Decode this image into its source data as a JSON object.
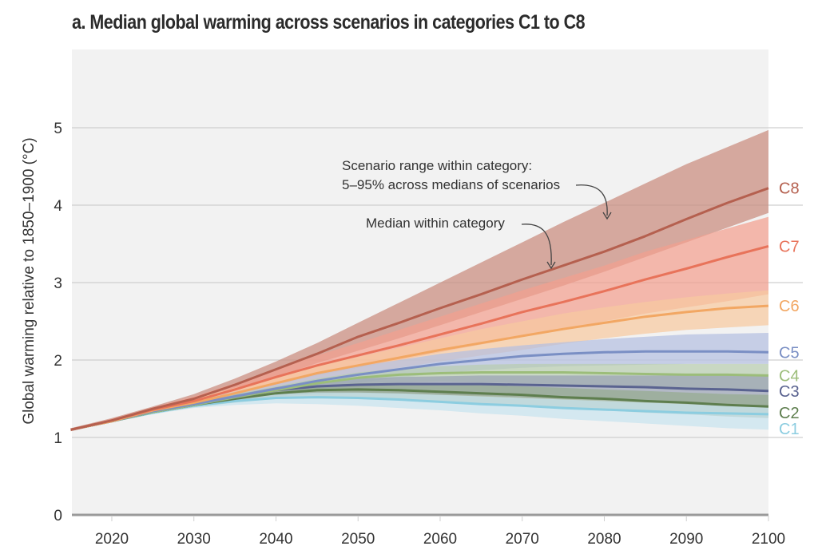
{
  "chart_data": {
    "type": "area",
    "title": "a. Median global warming across scenarios in categories C1 to C8",
    "xlabel": "",
    "ylabel": "Global warming relative to 1850–1900 (°C)",
    "xlim": [
      2015,
      2100
    ],
    "ylim": [
      0,
      6
    ],
    "x_ticks": [
      2020,
      2030,
      2040,
      2050,
      2060,
      2070,
      2080,
      2090,
      2100
    ],
    "y_ticks": [
      0,
      1,
      2,
      3,
      4,
      5
    ],
    "grid": "horizontal",
    "x": [
      2015,
      2020,
      2025,
      2030,
      2035,
      2040,
      2045,
      2050,
      2055,
      2060,
      2065,
      2070,
      2075,
      2080,
      2085,
      2090,
      2095,
      2100
    ],
    "annotations": [
      {
        "text_line1": "Scenario range within category:",
        "text_line2": "5–95% across medians of scenarios",
        "points_to": "C8 range band"
      },
      {
        "text": "Median within category",
        "points_to": "C8 median line"
      }
    ],
    "series": [
      {
        "name": "C8",
        "color": "#b5604f",
        "band_color": "#c98b7d",
        "median": [
          1.1,
          1.22,
          1.37,
          1.5,
          1.68,
          1.88,
          2.08,
          2.3,
          2.48,
          2.67,
          2.85,
          3.04,
          3.22,
          3.4,
          3.6,
          3.82,
          4.03,
          4.22
        ],
        "upper": [
          1.12,
          1.25,
          1.4,
          1.56,
          1.76,
          1.98,
          2.22,
          2.48,
          2.74,
          3.0,
          3.26,
          3.52,
          3.78,
          4.03,
          4.28,
          4.53,
          4.75,
          4.97
        ],
        "lower": [
          1.08,
          1.2,
          1.35,
          1.46,
          1.61,
          1.78,
          1.96,
          2.12,
          2.28,
          2.45,
          2.62,
          2.79,
          2.96,
          3.14,
          3.33,
          3.52,
          3.71,
          3.9
        ]
      },
      {
        "name": "C7",
        "color": "#e8735a",
        "band_color": "#f3a08f",
        "median": [
          1.1,
          1.22,
          1.36,
          1.47,
          1.62,
          1.78,
          1.93,
          2.06,
          2.19,
          2.33,
          2.47,
          2.62,
          2.75,
          2.89,
          3.04,
          3.18,
          3.33,
          3.47
        ],
        "upper": [
          1.11,
          1.24,
          1.39,
          1.53,
          1.7,
          1.88,
          2.06,
          2.22,
          2.39,
          2.56,
          2.73,
          2.9,
          3.06,
          3.22,
          3.4,
          3.55,
          3.7,
          3.85
        ],
        "lower": [
          1.09,
          1.2,
          1.34,
          1.43,
          1.55,
          1.68,
          1.8,
          1.9,
          2.0,
          2.1,
          2.2,
          2.3,
          2.4,
          2.5,
          2.6,
          2.68,
          2.76,
          2.85
        ]
      },
      {
        "name": "C6",
        "color": "#f2a763",
        "band_color": "#f7c9a0",
        "median": [
          1.1,
          1.21,
          1.35,
          1.45,
          1.57,
          1.7,
          1.83,
          1.93,
          2.03,
          2.13,
          2.22,
          2.31,
          2.4,
          2.48,
          2.56,
          2.62,
          2.67,
          2.7
        ],
        "upper": [
          1.11,
          1.23,
          1.38,
          1.5,
          1.64,
          1.78,
          1.93,
          2.04,
          2.16,
          2.28,
          2.4,
          2.5,
          2.6,
          2.68,
          2.75,
          2.81,
          2.86,
          2.9
        ],
        "lower": [
          1.09,
          1.2,
          1.33,
          1.42,
          1.52,
          1.62,
          1.73,
          1.82,
          1.9,
          1.98,
          2.06,
          2.13,
          2.21,
          2.28,
          2.34,
          2.39,
          2.42,
          2.45
        ]
      },
      {
        "name": "C5",
        "color": "#7a8fc4",
        "band_color": "#b4bfe0",
        "median": [
          1.1,
          1.21,
          1.34,
          1.43,
          1.53,
          1.63,
          1.73,
          1.81,
          1.88,
          1.95,
          2.0,
          2.05,
          2.08,
          2.1,
          2.11,
          2.11,
          2.11,
          2.1
        ],
        "upper": [
          1.11,
          1.23,
          1.37,
          1.47,
          1.59,
          1.71,
          1.82,
          1.92,
          2.0,
          2.08,
          2.14,
          2.19,
          2.23,
          2.27,
          2.3,
          2.33,
          2.34,
          2.35
        ],
        "lower": [
          1.09,
          1.2,
          1.32,
          1.4,
          1.48,
          1.56,
          1.64,
          1.71,
          1.77,
          1.83,
          1.87,
          1.9,
          1.92,
          1.93,
          1.94,
          1.95,
          1.95,
          1.95
        ]
      },
      {
        "name": "C4",
        "color": "#9cbd7a",
        "band_color": "#b8cdb0",
        "median": [
          1.1,
          1.21,
          1.33,
          1.42,
          1.52,
          1.61,
          1.7,
          1.77,
          1.81,
          1.83,
          1.84,
          1.84,
          1.84,
          1.83,
          1.82,
          1.81,
          1.81,
          1.8
        ],
        "upper": [
          1.11,
          1.22,
          1.35,
          1.45,
          1.56,
          1.66,
          1.76,
          1.84,
          1.89,
          1.92,
          1.94,
          1.95,
          1.95,
          1.95,
          1.95,
          1.95,
          1.95,
          1.95
        ],
        "lower": [
          1.09,
          1.2,
          1.31,
          1.4,
          1.48,
          1.55,
          1.62,
          1.68,
          1.71,
          1.72,
          1.71,
          1.7,
          1.68,
          1.66,
          1.64,
          1.62,
          1.61,
          1.6
        ]
      },
      {
        "name": "C3",
        "color": "#5a6390",
        "band_color": "#9aa2b4",
        "median": [
          1.1,
          1.21,
          1.33,
          1.42,
          1.52,
          1.61,
          1.66,
          1.68,
          1.69,
          1.69,
          1.69,
          1.68,
          1.67,
          1.66,
          1.65,
          1.63,
          1.62,
          1.6
        ],
        "upper": [
          1.11,
          1.22,
          1.35,
          1.45,
          1.55,
          1.65,
          1.72,
          1.76,
          1.78,
          1.79,
          1.8,
          1.8,
          1.8,
          1.8,
          1.8,
          1.8,
          1.8,
          1.8
        ],
        "lower": [
          1.09,
          1.2,
          1.31,
          1.39,
          1.47,
          1.53,
          1.56,
          1.57,
          1.56,
          1.55,
          1.54,
          1.52,
          1.5,
          1.48,
          1.46,
          1.44,
          1.42,
          1.4
        ]
      },
      {
        "name": "C2",
        "color": "#5e7e4e",
        "band_color": "#96ab90",
        "median": [
          1.1,
          1.21,
          1.33,
          1.42,
          1.5,
          1.57,
          1.61,
          1.62,
          1.61,
          1.59,
          1.57,
          1.55,
          1.52,
          1.5,
          1.47,
          1.45,
          1.42,
          1.4
        ],
        "upper": [
          1.11,
          1.22,
          1.35,
          1.44,
          1.54,
          1.62,
          1.67,
          1.7,
          1.7,
          1.69,
          1.68,
          1.66,
          1.64,
          1.62,
          1.6,
          1.58,
          1.56,
          1.55
        ],
        "lower": [
          1.09,
          1.2,
          1.31,
          1.39,
          1.45,
          1.5,
          1.52,
          1.52,
          1.5,
          1.47,
          1.44,
          1.41,
          1.38,
          1.35,
          1.32,
          1.3,
          1.27,
          1.25
        ]
      },
      {
        "name": "C1",
        "color": "#8ccde0",
        "band_color": "#c7e3ef",
        "median": [
          1.1,
          1.21,
          1.32,
          1.41,
          1.47,
          1.51,
          1.52,
          1.51,
          1.49,
          1.46,
          1.43,
          1.41,
          1.38,
          1.36,
          1.34,
          1.32,
          1.31,
          1.3
        ],
        "upper": [
          1.11,
          1.22,
          1.34,
          1.43,
          1.51,
          1.56,
          1.58,
          1.58,
          1.57,
          1.55,
          1.53,
          1.51,
          1.49,
          1.47,
          1.45,
          1.43,
          1.41,
          1.4
        ],
        "lower": [
          1.09,
          1.2,
          1.3,
          1.38,
          1.42,
          1.44,
          1.43,
          1.41,
          1.38,
          1.35,
          1.31,
          1.28,
          1.24,
          1.21,
          1.18,
          1.15,
          1.12,
          1.1
        ]
      }
    ]
  }
}
